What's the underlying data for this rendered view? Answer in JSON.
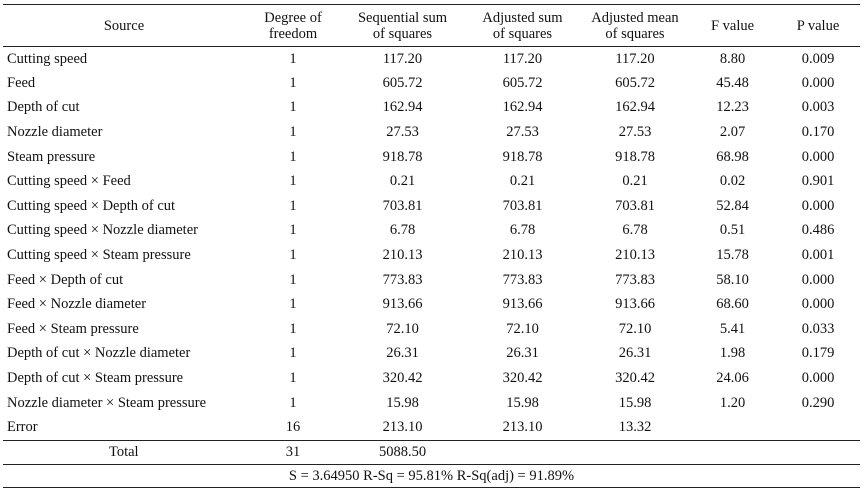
{
  "table": {
    "headers": {
      "source": "Source",
      "df_line1": "Degree of",
      "df_line2": "freedom",
      "seq_line1": "Sequential sum",
      "seq_line2": "of squares",
      "adj_line1": "Adjusted sum",
      "adj_line2": "of squares",
      "mean_line1": "Adjusted mean",
      "mean_line2": "of squares",
      "f": "F value",
      "p": "P value"
    },
    "rows": [
      {
        "source": "Cutting speed",
        "df": "1",
        "seq": "117.20",
        "adj": "117.20",
        "mean": "117.20",
        "f": "8.80",
        "p": "0.009"
      },
      {
        "source": "Feed",
        "df": "1",
        "seq": "605.72",
        "adj": "605.72",
        "mean": "605.72",
        "f": "45.48",
        "p": "0.000"
      },
      {
        "source": "Depth of cut",
        "df": "1",
        "seq": "162.94",
        "adj": "162.94",
        "mean": "162.94",
        "f": "12.23",
        "p": "0.003"
      },
      {
        "source": "Nozzle diameter",
        "df": "1",
        "seq": "27.53",
        "adj": "27.53",
        "mean": "27.53",
        "f": "2.07",
        "p": "0.170"
      },
      {
        "source": "Steam pressure",
        "df": "1",
        "seq": "918.78",
        "adj": "918.78",
        "mean": "918.78",
        "f": "68.98",
        "p": "0.000"
      },
      {
        "source": "Cutting speed × Feed",
        "df": "1",
        "seq": "0.21",
        "adj": "0.21",
        "mean": "0.21",
        "f": "0.02",
        "p": "0.901"
      },
      {
        "source": "Cutting speed × Depth of cut",
        "df": "1",
        "seq": "703.81",
        "adj": "703.81",
        "mean": "703.81",
        "f": "52.84",
        "p": "0.000"
      },
      {
        "source": "Cutting speed × Nozzle diameter",
        "df": "1",
        "seq": "6.78",
        "adj": "6.78",
        "mean": "6.78",
        "f": "0.51",
        "p": "0.486"
      },
      {
        "source": "Cutting speed × Steam pressure",
        "df": "1",
        "seq": "210.13",
        "adj": "210.13",
        "mean": "210.13",
        "f": "15.78",
        "p": "0.001"
      },
      {
        "source": "Feed × Depth of cut",
        "df": "1",
        "seq": "773.83",
        "adj": "773.83",
        "mean": "773.83",
        "f": "58.10",
        "p": "0.000"
      },
      {
        "source": "Feed × Nozzle diameter",
        "df": "1",
        "seq": "913.66",
        "adj": "913.66",
        "mean": "913.66",
        "f": "68.60",
        "p": "0.000"
      },
      {
        "source": "Feed × Steam pressure",
        "df": "1",
        "seq": "72.10",
        "adj": "72.10",
        "mean": "72.10",
        "f": "5.41",
        "p": "0.033"
      },
      {
        "source": "Depth of cut × Nozzle diameter",
        "df": "1",
        "seq": "26.31",
        "adj": "26.31",
        "mean": "26.31",
        "f": "1.98",
        "p": "0.179"
      },
      {
        "source": "Depth of cut × Steam pressure",
        "df": "1",
        "seq": "320.42",
        "adj": "320.42",
        "mean": "320.42",
        "f": "24.06",
        "p": "0.000"
      },
      {
        "source": "Nozzle diameter × Steam pressure",
        "df": "1",
        "seq": "15.98",
        "adj": "15.98",
        "mean": "15.98",
        "f": "1.20",
        "p": "0.290"
      },
      {
        "source": "Error",
        "df": "16",
        "seq": "213.10",
        "adj": "213.10",
        "mean": "13.32",
        "f": "",
        "p": ""
      }
    ],
    "total": {
      "source": "Total",
      "df": "31",
      "seq": "5088.50"
    },
    "summary": "S = 3.64950 R-Sq = 95.81% R-Sq(adj) = 91.89%"
  }
}
